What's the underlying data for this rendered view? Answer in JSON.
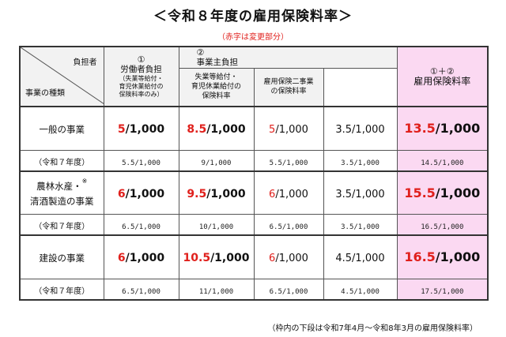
{
  "title": "＜令和８年度の雇用保険料率＞",
  "subtitle": "（赤字は変更部分）",
  "corner": {
    "top_label": "負担者",
    "bottom_label": "事業の種類"
  },
  "headers": {
    "worker": {
      "num": "①",
      "label": "労働者負担",
      "sub1": "（失業等給付・",
      "sub2": "育児休業給付の",
      "sub3": "保険料率のみ）"
    },
    "employer": {
      "num": "②",
      "label": "事業主負担"
    },
    "employer_sub1": {
      "l1": "失業等給付・",
      "l2": "育児休業給付の",
      "l3": "保険料率"
    },
    "employer_sub2": {
      "l1": "雇用保険二事業",
      "l2": "の保険料率"
    },
    "total": {
      "num": "①＋②",
      "label": "雇用保険料率"
    }
  },
  "rows": [
    {
      "category_l1": "一般の事業",
      "category_l2": "",
      "note": "",
      "worker_red": "5",
      "worker_rest": "/1,000",
      "employer_red": "8.5",
      "employer_rest": "/1,000",
      "emp_sub1_red": "5",
      "emp_sub1_rest": "/1,000",
      "emp_sub2": "3.5/1,000",
      "total_red": "13.5",
      "total_rest": "/1,000",
      "prev_label": "（令和７年度）",
      "prev": [
        "5.5/1,000",
        "9/1,000",
        "5.5/1,000",
        "3.5/1,000",
        "14.5/1,000"
      ]
    },
    {
      "category_l1": "農林水産・",
      "category_l2": "清酒製造の事業",
      "note": "※",
      "worker_red": "6",
      "worker_rest": "/1,000",
      "employer_red": "9.5",
      "employer_rest": "/1,000",
      "emp_sub1_red": "6",
      "emp_sub1_rest": "/1,000",
      "emp_sub2": "3.5/1,000",
      "total_red": "15.5",
      "total_rest": "/1,000",
      "prev_label": "（令和７年度）",
      "prev": [
        "6.5/1,000",
        "10/1,000",
        "6.5/1,000",
        "3.5/1,000",
        "16.5/1,000"
      ]
    },
    {
      "category_l1": "建設の事業",
      "category_l2": "",
      "note": "",
      "worker_red": "6",
      "worker_rest": "/1,000",
      "employer_red": "10.5",
      "employer_rest": "/1,000",
      "emp_sub1_red": "6",
      "emp_sub1_rest": "/1,000",
      "emp_sub2": "4.5/1,000",
      "total_red": "16.5",
      "total_rest": "/1,000",
      "prev_label": "（令和７年度）",
      "prev": [
        "6.5/1,000",
        "11/1,000",
        "6.5/1,000",
        "4.5/1,000",
        "17.5/1,000"
      ]
    }
  ],
  "footnote": "（枠内の下段は令和7年4月～令和8年3月の雇用保険料率）"
}
